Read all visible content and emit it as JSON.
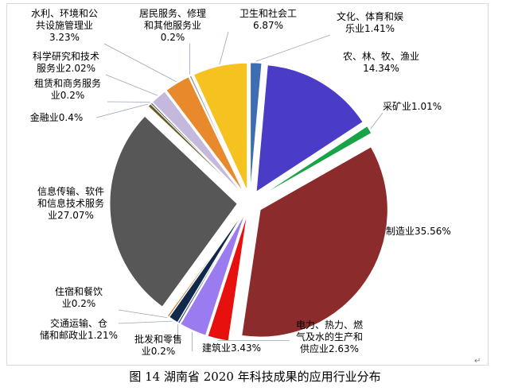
{
  "chart_data": {
    "type": "pie",
    "title": "",
    "slices": [
      {
        "name": "文化、体育和娱乐业",
        "value": 1.41,
        "label_lines": [
          "文化、体育和娱",
          "乐业1.41%"
        ],
        "color": "#3f6db3"
      },
      {
        "name": "农、林、牧、渔业",
        "value": 14.34,
        "label_lines": [
          "农、林、牧、渔业",
          "14.34%"
        ],
        "color": "#4b3cc8"
      },
      {
        "name": "采矿业",
        "value": 1.01,
        "label_lines": [
          "采矿业1.01%"
        ],
        "color": "#18a348"
      },
      {
        "name": "制造业",
        "value": 35.56,
        "label_lines": [
          "制造业35.56%"
        ],
        "color": "#8b2b2b"
      },
      {
        "name": "电力、热力、燃气及水的生产和供应业",
        "value": 2.63,
        "label_lines": [
          "电力、热力、燃",
          "气及水的生产和",
          "供应业2.63%"
        ],
        "color": "#e80f0f"
      },
      {
        "name": "建筑业",
        "value": 3.43,
        "label_lines": [
          "建筑业3.43%"
        ],
        "color": "#9a7cf0"
      },
      {
        "name": "批发和零售业",
        "value": 0.2,
        "label_lines": [
          "批发和零售",
          "业0.2%"
        ],
        "color": "#2b3a8c"
      },
      {
        "name": "交通运输、仓储和邮政业",
        "value": 1.21,
        "label_lines": [
          "交通运输、仓",
          "储和邮政业1.21%"
        ],
        "color": "#0f2a4a"
      },
      {
        "name": "住宿和餐饮业",
        "value": 0.2,
        "label_lines": [
          "住宿和餐饮",
          "业0.2%"
        ],
        "color": "#c86a10"
      },
      {
        "name": "信息传输、软件和信息技术服务业",
        "value": 27.07,
        "label_lines": [
          "信息传输、软件",
          "和信息技术服务",
          "业27.07%"
        ],
        "color": "#575757"
      },
      {
        "name": "金融业",
        "value": 0.4,
        "label_lines": [
          "金融业0.4%"
        ],
        "color": "#6b5a1e"
      },
      {
        "name": "租赁和商务服务业",
        "value": 0.2,
        "label_lines": [
          "租赁和商务服务",
          "业0.2%"
        ],
        "color": "#4a6a8a"
      },
      {
        "name": "科学研究和技术服务业",
        "value": 2.02,
        "label_lines": [
          "科学研究和技术",
          "服务业2.02%"
        ],
        "color": "#c4b8dc"
      },
      {
        "name": "水利、环境和公共设施管理业",
        "value": 3.23,
        "label_lines": [
          "水利、环境和公",
          "共设施管理业",
          "3.23%"
        ],
        "color": "#e8892c"
      },
      {
        "name": "居民服务、修理和其他服务业",
        "value": 0.2,
        "label_lines": [
          "居民服务、修理",
          "和其他服务业",
          "0.2%"
        ],
        "color": "#8a8a8a"
      },
      {
        "name": "卫生和社会工作",
        "value": 6.87,
        "label_lines": [
          "卫生和社会工",
          "6.87%"
        ],
        "color": "#f5c21f"
      }
    ]
  },
  "caption": "图 14 湖南省 2020 年科技成果的应用行业分布",
  "caption_mark": "↵"
}
